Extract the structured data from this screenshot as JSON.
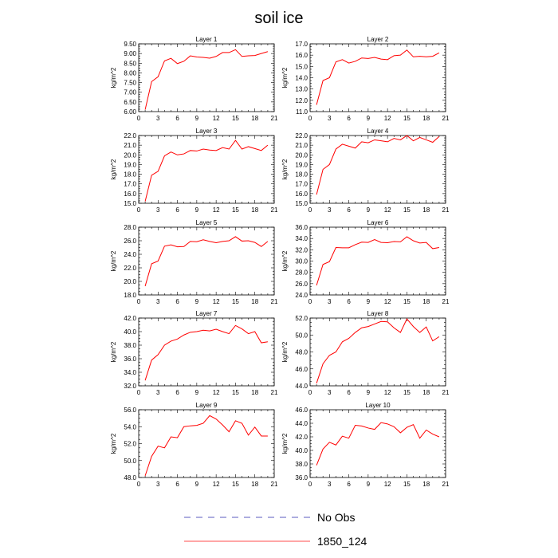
{
  "figure_title": "soil ice",
  "legend": [
    {
      "label": "No Obs",
      "color": "#5b5bbf",
      "style": "dashed"
    },
    {
      "label": "1850_124",
      "color": "#ff0000",
      "style": "solid"
    }
  ],
  "chart_data": [
    {
      "type": "line",
      "title": "Layer 1",
      "ylabel": "kg/m^2",
      "xlim": [
        0,
        21
      ],
      "xticks": [
        "0",
        "3",
        "6",
        "9",
        "12",
        "15",
        "18",
        "21"
      ],
      "ylim": [
        6.0,
        9.5
      ],
      "yticks": [
        "6.00",
        "6.50",
        "7.00",
        "7.50",
        "8.00",
        "8.50",
        "9.00",
        "9.50"
      ],
      "x": [
        1,
        2,
        3,
        4,
        5,
        6,
        7,
        8,
        9,
        10,
        11,
        12,
        13,
        14,
        15,
        16,
        17,
        18,
        19,
        20
      ],
      "series": [
        {
          "name": "1850_124",
          "color": "#ff0000",
          "values": [
            6.1,
            7.55,
            7.8,
            8.62,
            8.75,
            8.48,
            8.6,
            8.88,
            8.82,
            8.8,
            8.76,
            8.85,
            9.05,
            9.05,
            9.2,
            8.85,
            8.88,
            8.9,
            9.0,
            9.1
          ]
        }
      ]
    },
    {
      "type": "line",
      "title": "Layer 2",
      "ylabel": "kg/m^2",
      "xlim": [
        0,
        21
      ],
      "xticks": [
        "0",
        "3",
        "6",
        "9",
        "12",
        "15",
        "18",
        "21"
      ],
      "ylim": [
        11.0,
        17.0
      ],
      "yticks": [
        "11.0",
        "12.0",
        "13.0",
        "14.0",
        "15.0",
        "16.0",
        "17.0"
      ],
      "x": [
        1,
        2,
        3,
        4,
        5,
        6,
        7,
        8,
        9,
        10,
        11,
        12,
        13,
        14,
        15,
        16,
        17,
        18,
        19,
        20
      ],
      "series": [
        {
          "name": "1850_124",
          "color": "#ff0000",
          "values": [
            11.6,
            13.75,
            14.0,
            15.4,
            15.6,
            15.3,
            15.45,
            15.75,
            15.7,
            15.8,
            15.65,
            15.6,
            15.95,
            16.0,
            16.45,
            15.85,
            15.9,
            15.85,
            15.9,
            16.2
          ]
        }
      ]
    },
    {
      "type": "line",
      "title": "Layer 3",
      "ylabel": "kg/m^2",
      "xlim": [
        0,
        21
      ],
      "xticks": [
        "0",
        "3",
        "6",
        "9",
        "12",
        "15",
        "18",
        "21"
      ],
      "ylim": [
        15.0,
        22.0
      ],
      "yticks": [
        "15.0",
        "16.0",
        "17.0",
        "18.0",
        "19.0",
        "20.0",
        "21.0",
        "22.0"
      ],
      "x": [
        1,
        2,
        3,
        4,
        5,
        6,
        7,
        8,
        9,
        10,
        11,
        12,
        13,
        14,
        15,
        16,
        17,
        18,
        19,
        20
      ],
      "series": [
        {
          "name": "1850_124",
          "color": "#ff0000",
          "values": [
            15.2,
            17.9,
            18.3,
            19.9,
            20.3,
            20.0,
            20.1,
            20.45,
            20.4,
            20.6,
            20.5,
            20.45,
            20.75,
            20.6,
            21.5,
            20.6,
            20.85,
            20.65,
            20.45,
            21.0
          ]
        }
      ]
    },
    {
      "type": "line",
      "title": "Layer 4",
      "ylabel": "kg/m^2",
      "xlim": [
        0,
        21
      ],
      "xticks": [
        "0",
        "3",
        "6",
        "9",
        "12",
        "15",
        "18",
        "21"
      ],
      "ylim": [
        15.0,
        22.0
      ],
      "yticks": [
        "15.0",
        "16.0",
        "17.0",
        "18.0",
        "19.0",
        "20.0",
        "21.0",
        "22.0"
      ],
      "x": [
        1,
        2,
        3,
        4,
        5,
        6,
        7,
        8,
        9,
        10,
        11,
        12,
        13,
        14,
        15,
        16,
        17,
        18,
        19,
        20
      ],
      "series": [
        {
          "name": "1850_124",
          "color": "#ff0000",
          "values": [
            15.9,
            18.5,
            19.0,
            20.6,
            21.1,
            20.9,
            20.7,
            21.35,
            21.25,
            21.55,
            21.45,
            21.35,
            21.7,
            21.55,
            22.0,
            21.45,
            21.8,
            21.55,
            21.3,
            21.9
          ]
        }
      ]
    },
    {
      "type": "line",
      "title": "Layer 5",
      "ylabel": "kg/m^2",
      "xlim": [
        0,
        21
      ],
      "xticks": [
        "0",
        "3",
        "6",
        "9",
        "12",
        "15",
        "18",
        "21"
      ],
      "ylim": [
        18.0,
        28.0
      ],
      "yticks": [
        "18.0",
        "20.0",
        "22.0",
        "24.0",
        "26.0",
        "28.0"
      ],
      "x": [
        1,
        2,
        3,
        4,
        5,
        6,
        7,
        8,
        9,
        10,
        11,
        12,
        13,
        14,
        15,
        16,
        17,
        18,
        19,
        20
      ],
      "series": [
        {
          "name": "1850_124",
          "color": "#ff0000",
          "values": [
            19.3,
            22.6,
            23.0,
            25.2,
            25.4,
            25.1,
            25.15,
            25.9,
            25.85,
            26.15,
            25.9,
            25.7,
            25.9,
            26.0,
            26.6,
            25.95,
            26.0,
            25.75,
            25.15,
            25.9
          ]
        }
      ]
    },
    {
      "type": "line",
      "title": "Layer 6",
      "ylabel": "kg/m^2",
      "xlim": [
        0,
        21
      ],
      "xticks": [
        "0",
        "3",
        "6",
        "9",
        "12",
        "15",
        "18",
        "21"
      ],
      "ylim": [
        24.0,
        36.0
      ],
      "yticks": [
        "24.0",
        "26.0",
        "28.0",
        "30.0",
        "32.0",
        "34.0",
        "36.0"
      ],
      "x": [
        1,
        2,
        3,
        4,
        5,
        6,
        7,
        8,
        9,
        10,
        11,
        12,
        13,
        14,
        15,
        16,
        17,
        18,
        19,
        20
      ],
      "series": [
        {
          "name": "1850_124",
          "color": "#ff0000",
          "values": [
            25.7,
            29.4,
            29.9,
            32.4,
            32.35,
            32.35,
            32.9,
            33.35,
            33.3,
            33.8,
            33.3,
            33.25,
            33.45,
            33.4,
            34.3,
            33.6,
            33.2,
            33.3,
            32.2,
            32.4
          ]
        }
      ]
    },
    {
      "type": "line",
      "title": "Layer 7",
      "ylabel": "kg/m^2",
      "xlim": [
        0,
        21
      ],
      "xticks": [
        "0",
        "3",
        "6",
        "9",
        "12",
        "15",
        "18",
        "21"
      ],
      "ylim": [
        32.0,
        42.0
      ],
      "yticks": [
        "32.0",
        "34.0",
        "36.0",
        "38.0",
        "40.0",
        "42.0"
      ],
      "x": [
        1,
        2,
        3,
        4,
        5,
        6,
        7,
        8,
        9,
        10,
        11,
        12,
        13,
        14,
        15,
        16,
        17,
        18,
        19,
        20
      ],
      "series": [
        {
          "name": "1850_124",
          "color": "#ff0000",
          "values": [
            32.8,
            35.8,
            36.6,
            38.0,
            38.6,
            38.9,
            39.5,
            39.9,
            40.0,
            40.2,
            40.1,
            40.35,
            40.0,
            39.7,
            40.9,
            40.4,
            39.7,
            40.0,
            38.35,
            38.5
          ]
        }
      ]
    },
    {
      "type": "line",
      "title": "Layer 8",
      "ylabel": "kg/m^2",
      "xlim": [
        0,
        21
      ],
      "xticks": [
        "0",
        "3",
        "6",
        "9",
        "12",
        "15",
        "18",
        "21"
      ],
      "ylim": [
        44.0,
        52.0
      ],
      "yticks": [
        "44.0",
        "46.0",
        "48.0",
        "50.0",
        "52.0"
      ],
      "x": [
        1,
        2,
        3,
        4,
        5,
        6,
        7,
        8,
        9,
        10,
        11,
        12,
        13,
        14,
        15,
        16,
        17,
        18,
        19,
        20
      ],
      "series": [
        {
          "name": "1850_124",
          "color": "#ff0000",
          "values": [
            44.3,
            46.6,
            47.6,
            48.0,
            49.2,
            49.6,
            50.3,
            50.85,
            51.0,
            51.3,
            51.6,
            51.55,
            50.85,
            50.3,
            51.9,
            51.0,
            50.3,
            50.95,
            49.3,
            49.8
          ]
        }
      ]
    },
    {
      "type": "line",
      "title": "Layer 9",
      "ylabel": "kg/m^2",
      "xlim": [
        0,
        21
      ],
      "xticks": [
        "0",
        "3",
        "6",
        "9",
        "12",
        "15",
        "18",
        "21"
      ],
      "ylim": [
        48.0,
        56.0
      ],
      "yticks": [
        "48.0",
        "50.0",
        "52.0",
        "54.0",
        "56.0"
      ],
      "x": [
        1,
        2,
        3,
        4,
        5,
        6,
        7,
        8,
        9,
        10,
        11,
        12,
        13,
        14,
        15,
        16,
        17,
        18,
        19,
        20
      ],
      "series": [
        {
          "name": "1850_124",
          "color": "#ff0000",
          "values": [
            48.2,
            50.5,
            51.7,
            51.5,
            52.8,
            52.7,
            54.0,
            54.1,
            54.15,
            54.4,
            55.3,
            54.9,
            54.2,
            53.4,
            54.7,
            54.4,
            53.0,
            53.95,
            52.9,
            52.9
          ]
        }
      ]
    },
    {
      "type": "line",
      "title": "Layer 10",
      "ylabel": "kg/m^2",
      "xlim": [
        0,
        21
      ],
      "xticks": [
        "0",
        "3",
        "6",
        "9",
        "12",
        "15",
        "18",
        "21"
      ],
      "ylim": [
        36.0,
        46.0
      ],
      "yticks": [
        "36.0",
        "38.0",
        "40.0",
        "42.0",
        "44.0",
        "46.0"
      ],
      "x": [
        1,
        2,
        3,
        4,
        5,
        6,
        7,
        8,
        9,
        10,
        11,
        12,
        13,
        14,
        15,
        16,
        17,
        18,
        19,
        20
      ],
      "series": [
        {
          "name": "1850_124",
          "color": "#ff0000",
          "values": [
            37.8,
            40.2,
            41.2,
            40.8,
            42.1,
            41.8,
            43.7,
            43.6,
            43.3,
            43.1,
            44.1,
            43.9,
            43.5,
            42.6,
            43.4,
            43.8,
            41.8,
            43.0,
            42.4,
            42.0
          ]
        }
      ]
    }
  ]
}
